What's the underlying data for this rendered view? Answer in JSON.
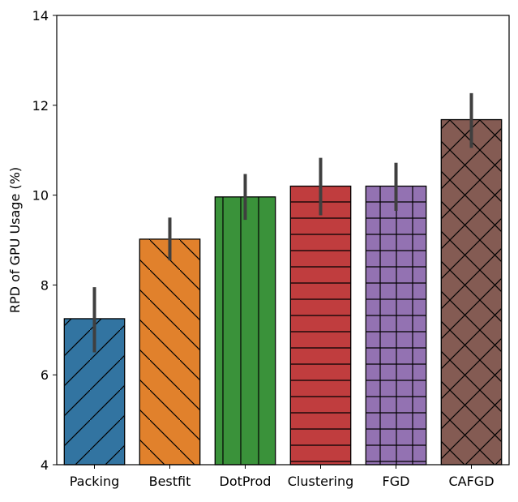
{
  "chart_data": {
    "type": "bar",
    "title": "",
    "xlabel": "",
    "ylabel": "RPD of GPU Usage (%)",
    "ylim": [
      4,
      14
    ],
    "yticks": [
      4,
      6,
      8,
      10,
      12,
      14
    ],
    "grid": false,
    "categories": [
      "Packing",
      "Bestfit",
      "DotProd",
      "Clustering",
      "FGD",
      "CAFGD"
    ],
    "values": [
      7.25,
      9.02,
      9.96,
      10.2,
      10.2,
      11.68
    ],
    "error_low": [
      6.5,
      8.55,
      9.45,
      9.55,
      9.65,
      11.05
    ],
    "error_high": [
      7.95,
      9.5,
      10.47,
      10.83,
      10.72,
      12.27
    ],
    "colors": [
      "#3274a1",
      "#e1812c",
      "#3a923a",
      "#c03d3e",
      "#9372b2",
      "#845b53"
    ],
    "hatches": [
      "diag-up",
      "diag-down",
      "vertical",
      "horizontal",
      "grid",
      "crosshatch"
    ]
  }
}
